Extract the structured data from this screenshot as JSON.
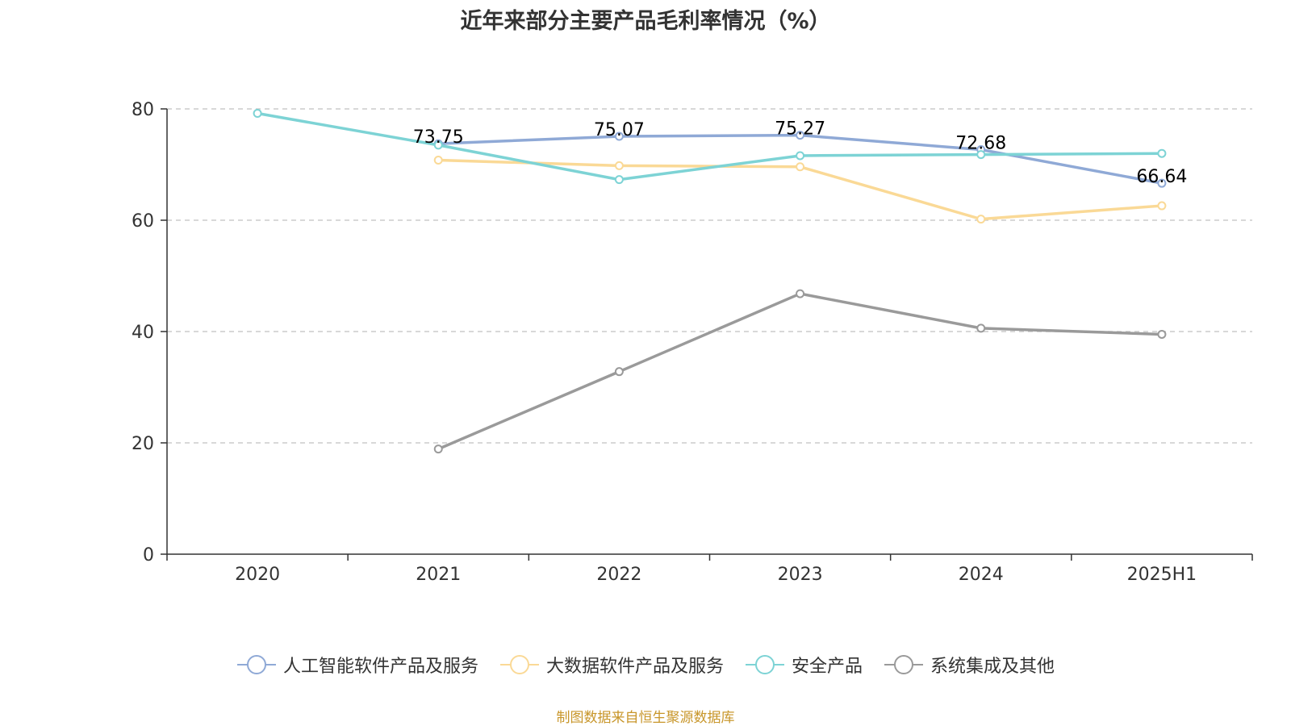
{
  "colors": {
    "background": "#ffffff",
    "axis": "#333333",
    "grid": "#cccccc",
    "source_note": "#c8962a"
  },
  "chart_data": {
    "type": "line",
    "title": "近年来部分主要产品毛利率情况（%）",
    "categories": [
      "2020",
      "2021",
      "2022",
      "2023",
      "2024",
      "2025H1"
    ],
    "ylim": [
      0,
      80
    ],
    "yticks": [
      "0",
      "20",
      "40",
      "60",
      "80"
    ],
    "grid": true,
    "grid_style": "dashed",
    "legend_position": "bottom",
    "series": [
      {
        "name": "人工智能软件产品及服务",
        "color": "#8fa9d6",
        "values": [
          null,
          73.75,
          75.07,
          75.27,
          72.68,
          66.64
        ],
        "labels": [
          "",
          "73.75",
          "75.07",
          "75.27",
          "72.68",
          "66.64"
        ]
      },
      {
        "name": "大数据软件产品及服务",
        "color": "#fad996",
        "values": [
          null,
          70.8,
          69.8,
          69.6,
          60.2,
          62.6
        ],
        "labels": []
      },
      {
        "name": "安全产品",
        "color": "#7dd3d5",
        "values": [
          79.2,
          73.5,
          67.3,
          71.6,
          71.8,
          72.0
        ],
        "labels": []
      },
      {
        "name": "系统集成及其他",
        "color": "#9a9a9a",
        "values": [
          null,
          18.9,
          32.8,
          46.8,
          40.6,
          39.5
        ],
        "labels": []
      }
    ]
  },
  "source_note": "制图数据来自恒生聚源数据库"
}
